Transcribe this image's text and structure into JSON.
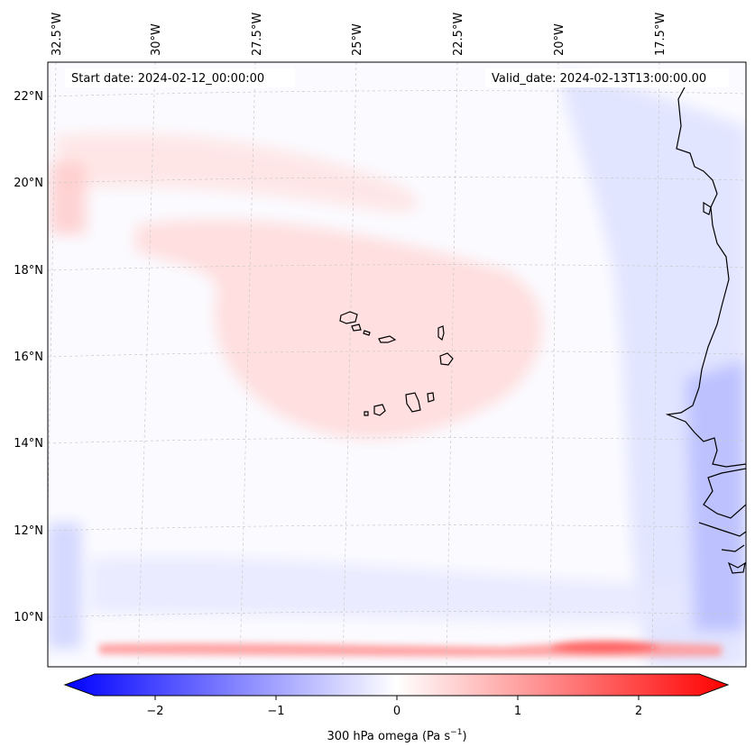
{
  "map": {
    "start_date_text": "Start date: 2024-02-12_00:00:00",
    "valid_date_text": "Valid_date: 2024-02-13T13:00:00.00",
    "longitude_labels": [
      "32.5°W",
      "30°W",
      "27.5°W",
      "25°W",
      "22.5°W",
      "20°W",
      "17.5°W"
    ],
    "latitude_labels": [
      "22°N",
      "20°N",
      "18°N",
      "16°N",
      "14°N",
      "12°N",
      "10°N"
    ],
    "colorbar": {
      "label": "300 hPa omega (Pa s",
      "label_sup": "−1",
      "label_tail": ")",
      "ticks": [
        "−2",
        "−1",
        "0",
        "1",
        "2"
      ],
      "tick_values": [
        -2,
        -1,
        0,
        1,
        2
      ],
      "range": [
        -2.5,
        2.5
      ],
      "colormap": [
        "#0000ff",
        "#ffffff",
        "#ff0000"
      ]
    },
    "colors": {
      "coastline": "#000000",
      "gridline": "#c9c9c9",
      "positive_omega": "#ff0000",
      "negative_omega": "#0000ff"
    }
  }
}
